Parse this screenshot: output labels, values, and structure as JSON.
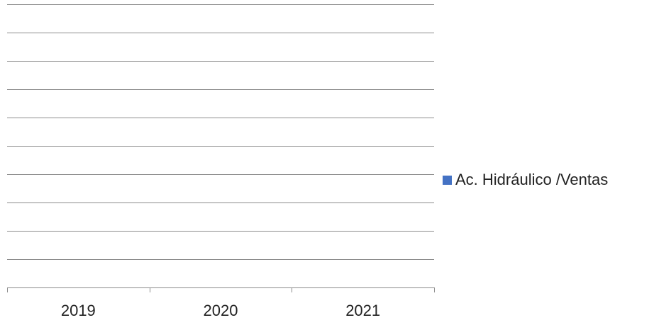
{
  "chart_data": {
    "type": "bar",
    "categories": [
      "2019",
      "2020",
      "2021"
    ],
    "series": [
      {
        "name": "Ac. Hidráulico /Ventas",
        "values": [
          null,
          null,
          null
        ],
        "color": "#4472c4"
      }
    ],
    "grid": true,
    "legend_position": "right",
    "title": "",
    "xlabel": "",
    "ylabel": ""
  }
}
